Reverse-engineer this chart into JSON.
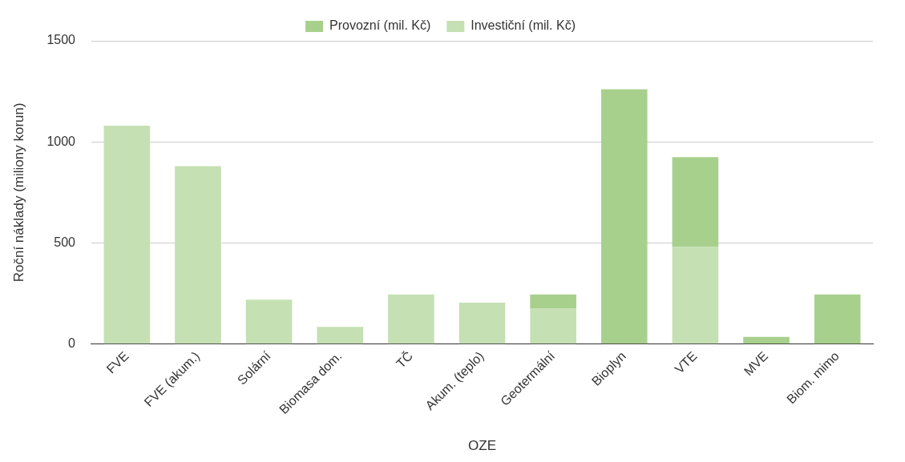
{
  "chart_data": {
    "type": "bar",
    "stacked": true,
    "xlabel": "OZE",
    "ylabel": "Roční náklady (miliony korun)",
    "categories": [
      "FVE",
      "FVE (akum.)",
      "Solární",
      "Biomasa dom.",
      "TČ",
      "Akum. (teplo)",
      "Geotermální",
      "Bioplyn",
      "VTE",
      "MVE",
      "Biom. mimo"
    ],
    "series": [
      {
        "name": "Investiční (mil. Kč)",
        "color": "#c5e0b3",
        "values": [
          1080,
          880,
          220,
          85,
          245,
          205,
          175,
          null,
          480,
          null,
          null
        ]
      },
      {
        "name": "Provozní (mil. Kč)",
        "color": "#a8d08d",
        "values": [
          null,
          null,
          null,
          null,
          null,
          null,
          70,
          1260,
          445,
          35,
          245
        ]
      }
    ],
    "ylim": [
      0,
      1500
    ],
    "yticks": [
      0,
      500,
      1000,
      1500
    ],
    "grid": "y",
    "legend": "top"
  }
}
